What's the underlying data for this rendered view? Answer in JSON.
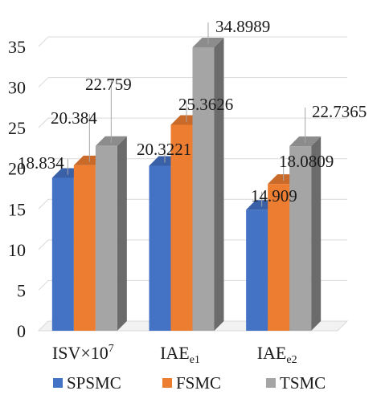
{
  "chart_data": {
    "type": "bar",
    "style": "3d-clustered-column",
    "categories": [
      {
        "label": "ISV×10",
        "sup": "7",
        "sub": ""
      },
      {
        "label": "IAE",
        "sup": "",
        "sub": "e1"
      },
      {
        "label": "IAE",
        "sup": "",
        "sub": "e2"
      }
    ],
    "series": [
      {
        "name": "SPSMC",
        "color": "#4472C4",
        "values": [
          18.834,
          20.3221,
          14.909
        ]
      },
      {
        "name": "FSMC",
        "color": "#ED7D31",
        "values": [
          20.384,
          25.3626,
          18.0809
        ]
      },
      {
        "name": "TSMC",
        "color": "#A5A5A5",
        "values": [
          22.759,
          34.8989,
          22.7365
        ]
      }
    ],
    "data_labels": [
      [
        "18.834",
        "20.3221",
        "14.909"
      ],
      [
        "20.384",
        "25.3626",
        "18.0809"
      ],
      [
        "22.759",
        "34.8989",
        "22.7365"
      ]
    ],
    "ylim": [
      0,
      35
    ],
    "yticks": [
      0,
      5,
      10,
      15,
      20,
      25,
      30,
      35
    ],
    "grid": true,
    "legend": "bottom",
    "title": "",
    "xlabel": "",
    "ylabel": ""
  }
}
